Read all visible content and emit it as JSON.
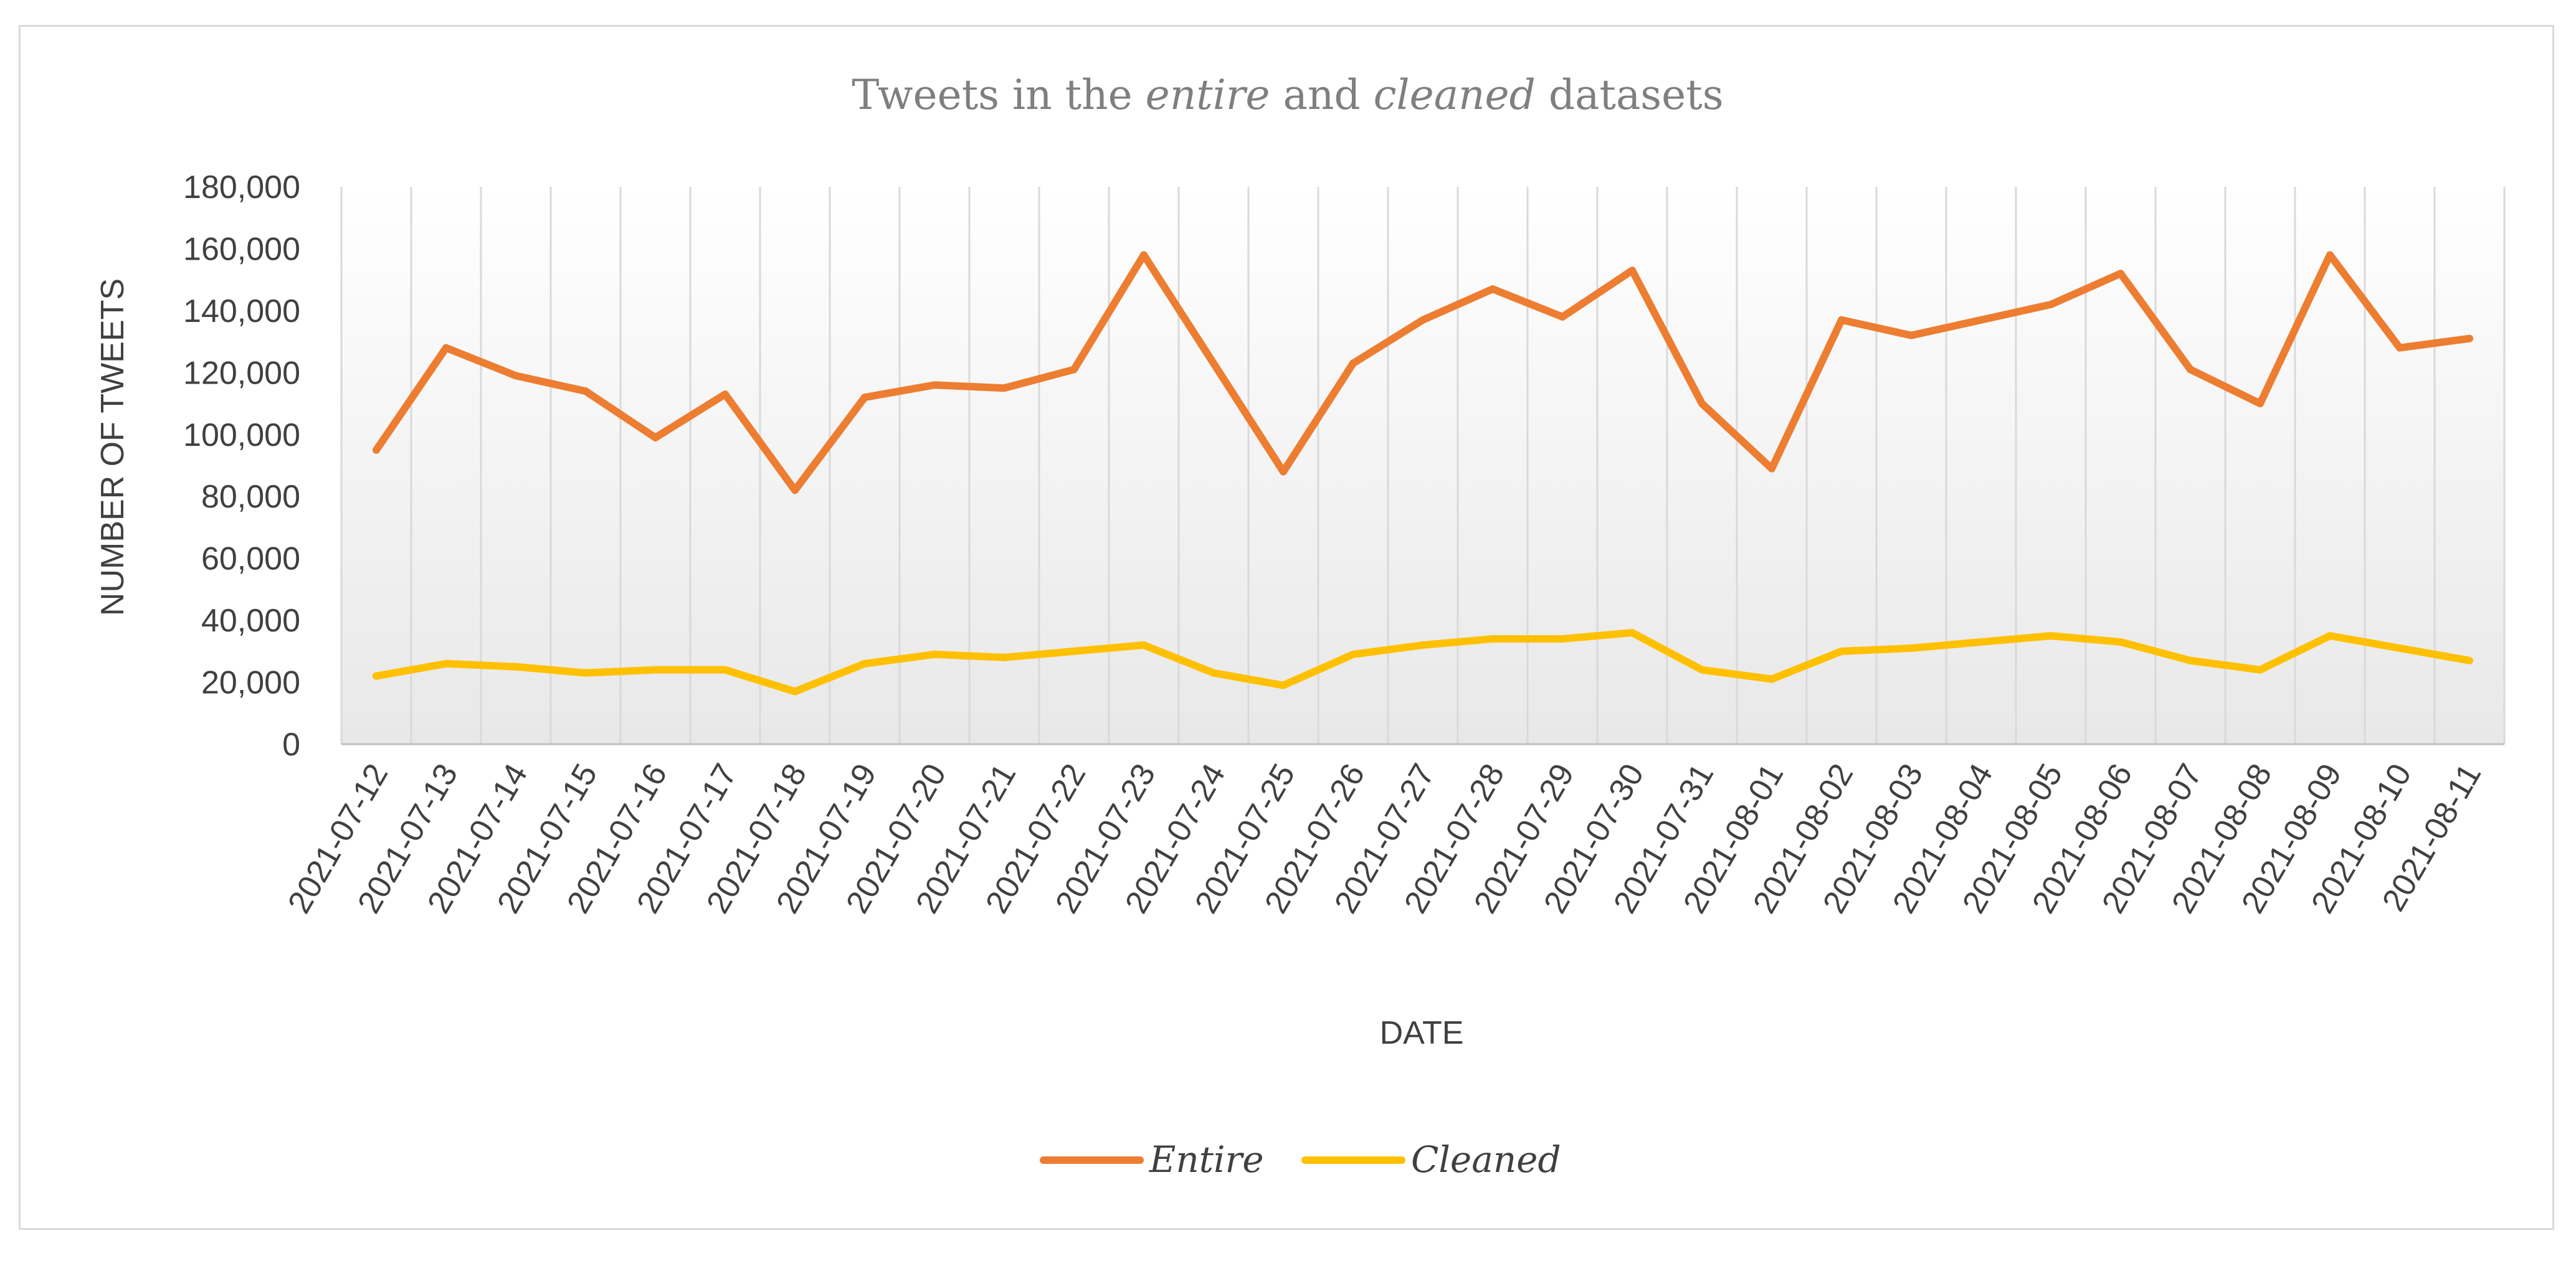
{
  "chart_data": {
    "type": "line",
    "title_parts": [
      {
        "text": "Tweets in the ",
        "italic": false
      },
      {
        "text": "entire",
        "italic": true
      },
      {
        "text": " and ",
        "italic": false
      },
      {
        "text": "cleaned",
        "italic": true
      },
      {
        "text": " datasets",
        "italic": false
      }
    ],
    "xlabel": "DATE",
    "ylabel": "NUMBER OF TWEETS",
    "ylim": [
      0,
      180000
    ],
    "yticks": [
      0,
      20000,
      40000,
      60000,
      80000,
      100000,
      120000,
      140000,
      160000,
      180000
    ],
    "ytick_labels": [
      "0",
      "20,000",
      "40,000",
      "60,000",
      "80,000",
      "100,000",
      "120,000",
      "140,000",
      "160,000",
      "180,000"
    ],
    "grid": "vertical",
    "legend_position": "bottom",
    "categories": [
      "2021-07-12",
      "2021-07-13",
      "2021-07-14",
      "2021-07-15",
      "2021-07-16",
      "2021-07-17",
      "2021-07-18",
      "2021-07-19",
      "2021-07-20",
      "2021-07-21",
      "2021-07-22",
      "2021-07-23",
      "2021-07-24",
      "2021-07-25",
      "2021-07-26",
      "2021-07-27",
      "2021-07-28",
      "2021-07-29",
      "2021-07-30",
      "2021-07-31",
      "2021-08-01",
      "2021-08-02",
      "2021-08-03",
      "2021-08-04",
      "2021-08-05",
      "2021-08-06",
      "2021-08-07",
      "2021-08-08",
      "2021-08-09",
      "2021-08-10",
      "2021-08-11"
    ],
    "series": [
      {
        "name": "Entire",
        "color": "#ed7d31",
        "values": [
          95000,
          128000,
          119000,
          114000,
          99000,
          113000,
          82000,
          112000,
          116000,
          115000,
          121000,
          158000,
          123000,
          88000,
          123000,
          137000,
          147000,
          138000,
          153000,
          110000,
          89000,
          137000,
          132000,
          137000,
          142000,
          152000,
          121000,
          110000,
          158000,
          128000,
          131000
        ]
      },
      {
        "name": "Cleaned",
        "color": "#ffc000",
        "values": [
          22000,
          26000,
          25000,
          23000,
          24000,
          24000,
          17000,
          26000,
          29000,
          28000,
          30000,
          32000,
          23000,
          19000,
          29000,
          32000,
          34000,
          34000,
          36000,
          24000,
          21000,
          30000,
          31000,
          33000,
          35000,
          33000,
          27000,
          24000,
          35000,
          31000,
          27000
        ]
      }
    ]
  }
}
